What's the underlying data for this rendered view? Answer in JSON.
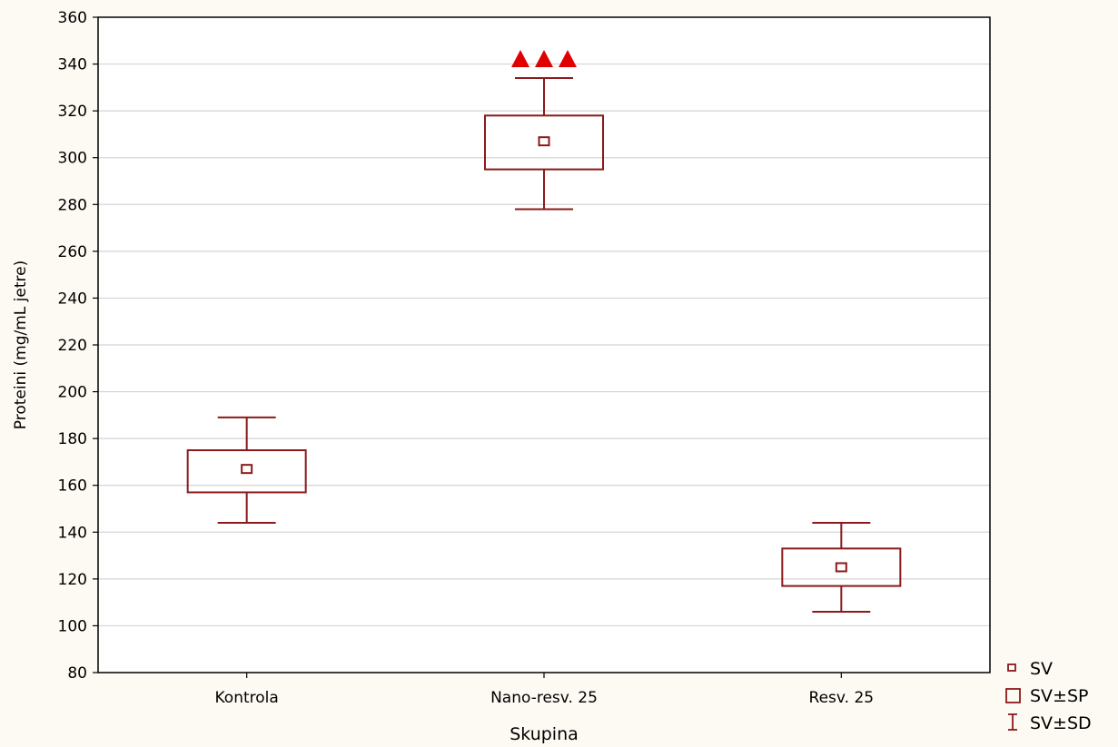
{
  "chart_data": {
    "type": "box",
    "xlabel": "Skupina",
    "ylabel": "Proteini (mg/mL jetre)",
    "ylim": [
      80,
      360
    ],
    "yticks": [
      80,
      100,
      120,
      140,
      160,
      180,
      200,
      220,
      240,
      260,
      280,
      300,
      320,
      340,
      360
    ],
    "grid": true,
    "legend_position": "bottom-right",
    "categories": [
      "Kontrola",
      "Nano-resv. 25",
      "Resv. 25"
    ],
    "groups": [
      {
        "name": "Kontrola",
        "mean": 167,
        "se_low": 157,
        "se_high": 175,
        "sd_low": 144,
        "sd_high": 189,
        "annotation": ""
      },
      {
        "name": "Nano-resv. 25",
        "mean": 307,
        "se_low": 295,
        "se_high": 318,
        "sd_low": 278,
        "sd_high": 334,
        "annotation": "▲▲▲"
      },
      {
        "name": "Resv. 25",
        "mean": 125,
        "se_low": 117,
        "se_high": 133,
        "sd_low": 106,
        "sd_high": 144,
        "annotation": ""
      }
    ],
    "legend": [
      {
        "symbol": "mean",
        "label": "SV"
      },
      {
        "symbol": "box",
        "label": "SV±SP"
      },
      {
        "symbol": "whisker",
        "label": "SV±SD"
      }
    ],
    "colors": {
      "box": "#8b1a1a",
      "annotation": "#e00000",
      "grid": "#d4d4d4",
      "plot_bg": "#ffffff",
      "page_bg": "#fdfaf3"
    }
  }
}
